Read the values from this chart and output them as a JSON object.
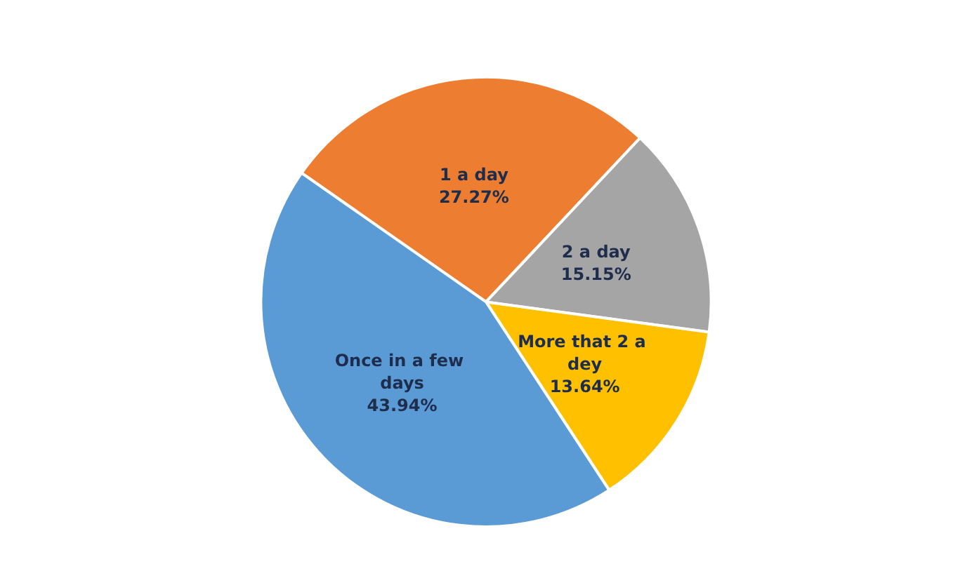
{
  "chart_data": {
    "type": "pie",
    "categories": [
      "1 a day",
      "2 a day",
      "More that 2 a dey",
      "Once in a few days"
    ],
    "values": [
      27.27,
      15.15,
      13.64,
      43.94
    ],
    "value_labels": [
      "27.27%",
      "15.15%",
      "13.64%",
      "43.94%"
    ],
    "colors": [
      "#ed7d31",
      "#a5a5a5",
      "#ffc000",
      "#5b9bd5"
    ],
    "legend": false
  }
}
